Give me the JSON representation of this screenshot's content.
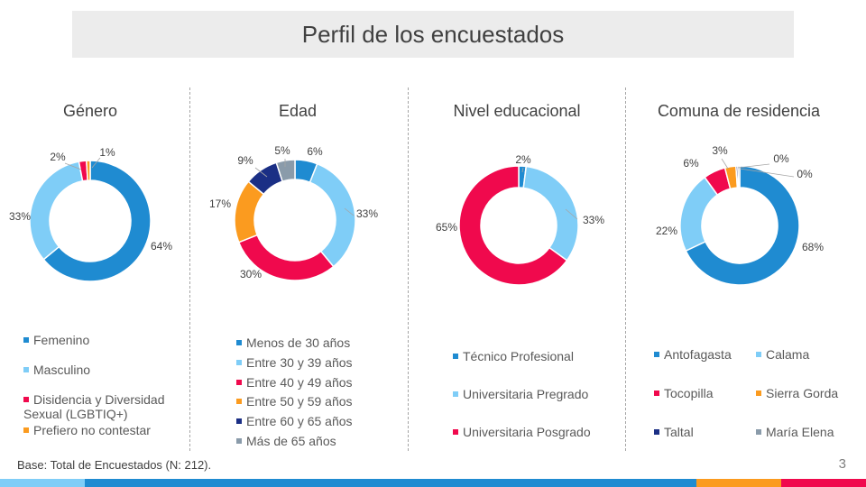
{
  "header": {
    "title": "Perfil de los encuestados"
  },
  "footer": {
    "base_note": "Base: Total de Encuestados (N: 212).",
    "page_number": "3"
  },
  "colors": {
    "blue": "#1f8bd1",
    "light_blue": "#7fcdf7",
    "red": "#f0094d",
    "orange": "#fb9b1f",
    "navy": "#1b2f85",
    "gray": "#8a9baa",
    "bar_light": "#7fcdf7",
    "bar_blue": "#1f8bd1",
    "bar_orange": "#fb9b1f",
    "bar_red": "#f0094d"
  },
  "chart_data": [
    {
      "type": "pie",
      "title": "Género",
      "categories": [
        "Femenino",
        "Masculino",
        "Disidencia y Diversidad Sexual (LGBTIQ+)",
        "Prefiero no contestar"
      ],
      "values": [
        64,
        33,
        2,
        1
      ],
      "value_labels": [
        "64%",
        "33%",
        "2%",
        "1%"
      ],
      "colors": [
        "#1f8bd1",
        "#7fcdf7",
        "#f0094d",
        "#fb9b1f"
      ],
      "legend_labels": [
        "Femenino",
        "Masculino",
        "Disidencia y Diversidad\nSexual (LGBTIQ+)",
        "Prefiero no contestar"
      ]
    },
    {
      "type": "pie",
      "title": "Edad",
      "categories": [
        "Menos de 30 años",
        "Entre 30 y 39 años",
        "Entre 40 y 49 años",
        "Entre 50 y 59 años",
        "Entre 60 y 65 años",
        "Más de 65 años"
      ],
      "values": [
        6,
        33,
        30,
        17,
        9,
        5
      ],
      "value_labels": [
        "6%",
        "33%",
        "30%",
        "17%",
        "9%",
        "5%"
      ],
      "colors": [
        "#1f8bd1",
        "#7fcdf7",
        "#f0094d",
        "#fb9b1f",
        "#1b2f85",
        "#8a9baa"
      ],
      "legend_labels": [
        "Menos de 30 años",
        "Entre 30 y 39 años",
        "Entre 40 y 49 años",
        "Entre 50 y 59 años",
        "Entre 60 y 65 años",
        "Más de 65 años"
      ]
    },
    {
      "type": "pie",
      "title": "Nivel educacional",
      "categories": [
        "Técnico Profesional",
        "Universitaria Pregrado",
        "Universitaria Posgrado"
      ],
      "values": [
        2,
        33,
        65
      ],
      "value_labels": [
        "2%",
        "33%",
        "65%"
      ],
      "colors": [
        "#1f8bd1",
        "#7fcdf7",
        "#f0094d"
      ],
      "legend_labels": [
        "Técnico Profesional",
        "Universitaria Pregrado",
        "Universitaria Posgrado"
      ]
    },
    {
      "type": "pie",
      "title": "Comuna de residencia",
      "categories": [
        "Antofagasta",
        "Calama",
        "Tocopilla",
        "Sierra Gorda",
        "Taltal",
        "María Elena"
      ],
      "values": [
        68,
        22,
        6,
        3,
        0.5,
        0.5
      ],
      "value_labels": [
        "68%",
        "22%",
        "6%",
        "3%",
        "0%",
        "0%"
      ],
      "colors": [
        "#1f8bd1",
        "#7fcdf7",
        "#f0094d",
        "#fb9b1f",
        "#1b2f85",
        "#8a9baa"
      ],
      "legend_labels": [
        "Antofagasta",
        "Calama",
        "Tocopilla",
        "Sierra Gorda",
        "Taltal",
        "María Elena"
      ]
    }
  ]
}
